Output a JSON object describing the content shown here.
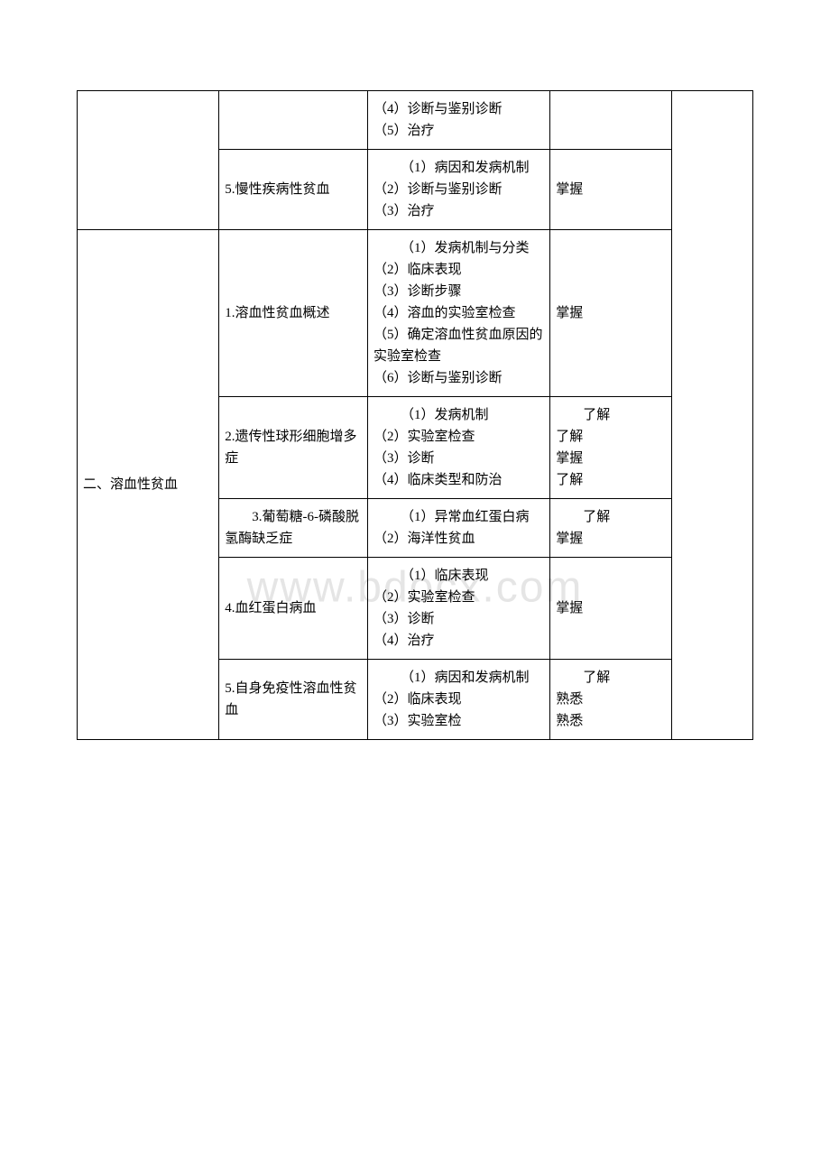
{
  "watermark": "www.bdocx.com",
  "table": {
    "columns": [
      "col1",
      "col2",
      "col3",
      "col4",
      "col5"
    ],
    "column_widths": [
      "21%",
      "22%",
      "27%",
      "18%",
      "12%"
    ],
    "border_color": "#000000",
    "background_color": "#ffffff",
    "text_color": "#000000",
    "font_size": 15,
    "rows": [
      {
        "c1": {
          "text": "",
          "rowspan": 2
        },
        "c2": {
          "text": "",
          "rowspan": 1
        },
        "c3": {
          "lines": [
            "（4）诊断与鉴别诊断",
            "（5）治疗"
          ]
        },
        "c4": {
          "text": ""
        },
        "c5": {
          "text": "",
          "rowspan": 8
        }
      },
      {
        "c2": {
          "text": "5.慢性疾病性贫血"
        },
        "c3": {
          "first_indent": "（1）病因和发病机制",
          "lines": [
            "（2）诊断与鉴别诊断",
            "（3）治疗"
          ]
        },
        "c4": {
          "text": "掌握"
        }
      },
      {
        "c1": {
          "text": "二、溶血性贫血",
          "rowspan": 6
        },
        "c2": {
          "text": "1.溶血性贫血概述"
        },
        "c3": {
          "first_indent": "（1）发病机制与分类",
          "lines": [
            "（2）临床表现",
            "（3）诊断步骤",
            "（4）溶血的实验室检查",
            "（5）确定溶血性贫血原因的实验室检查",
            "（6）诊断与鉴别诊断"
          ]
        },
        "c4": {
          "text": "掌握"
        }
      },
      {
        "c2": {
          "text": "2.遗传性球形细胞增多症"
        },
        "c3": {
          "first_indent": "（1）发病机制",
          "lines": [
            "（2）实验室检查",
            "（3）诊断",
            "（4）临床类型和防治"
          ]
        },
        "c4": {
          "first_indent": "了解",
          "lines": [
            "了解",
            "掌握",
            "了解"
          ]
        }
      },
      {
        "c2": {
          "first_indent": "3.葡萄糖-6-磷酸脱氢酶缺乏症"
        },
        "c3": {
          "first_indent": "（1）异常血红蛋白病",
          "lines": [
            "（2）海洋性贫血"
          ]
        },
        "c4": {
          "first_indent": "了解",
          "lines": [
            "掌握"
          ]
        }
      },
      {
        "c2": {
          "text": "4.血红蛋白病血"
        },
        "c3": {
          "first_indent": "（1）临床表现",
          "lines": [
            "（2）实验室检查",
            "（3）诊断",
            "（4）治疗"
          ]
        },
        "c4": {
          "text": "掌握"
        }
      },
      {
        "c2": {
          "text": "5.自身免疫性溶血性贫血"
        },
        "c3": {
          "first_indent": "（1）病因和发病机制",
          "lines": [
            "（2）临床表现",
            "（3）实验室检"
          ]
        },
        "c4": {
          "first_indent": "了解",
          "lines": [
            "熟悉",
            "熟悉"
          ]
        }
      }
    ]
  }
}
